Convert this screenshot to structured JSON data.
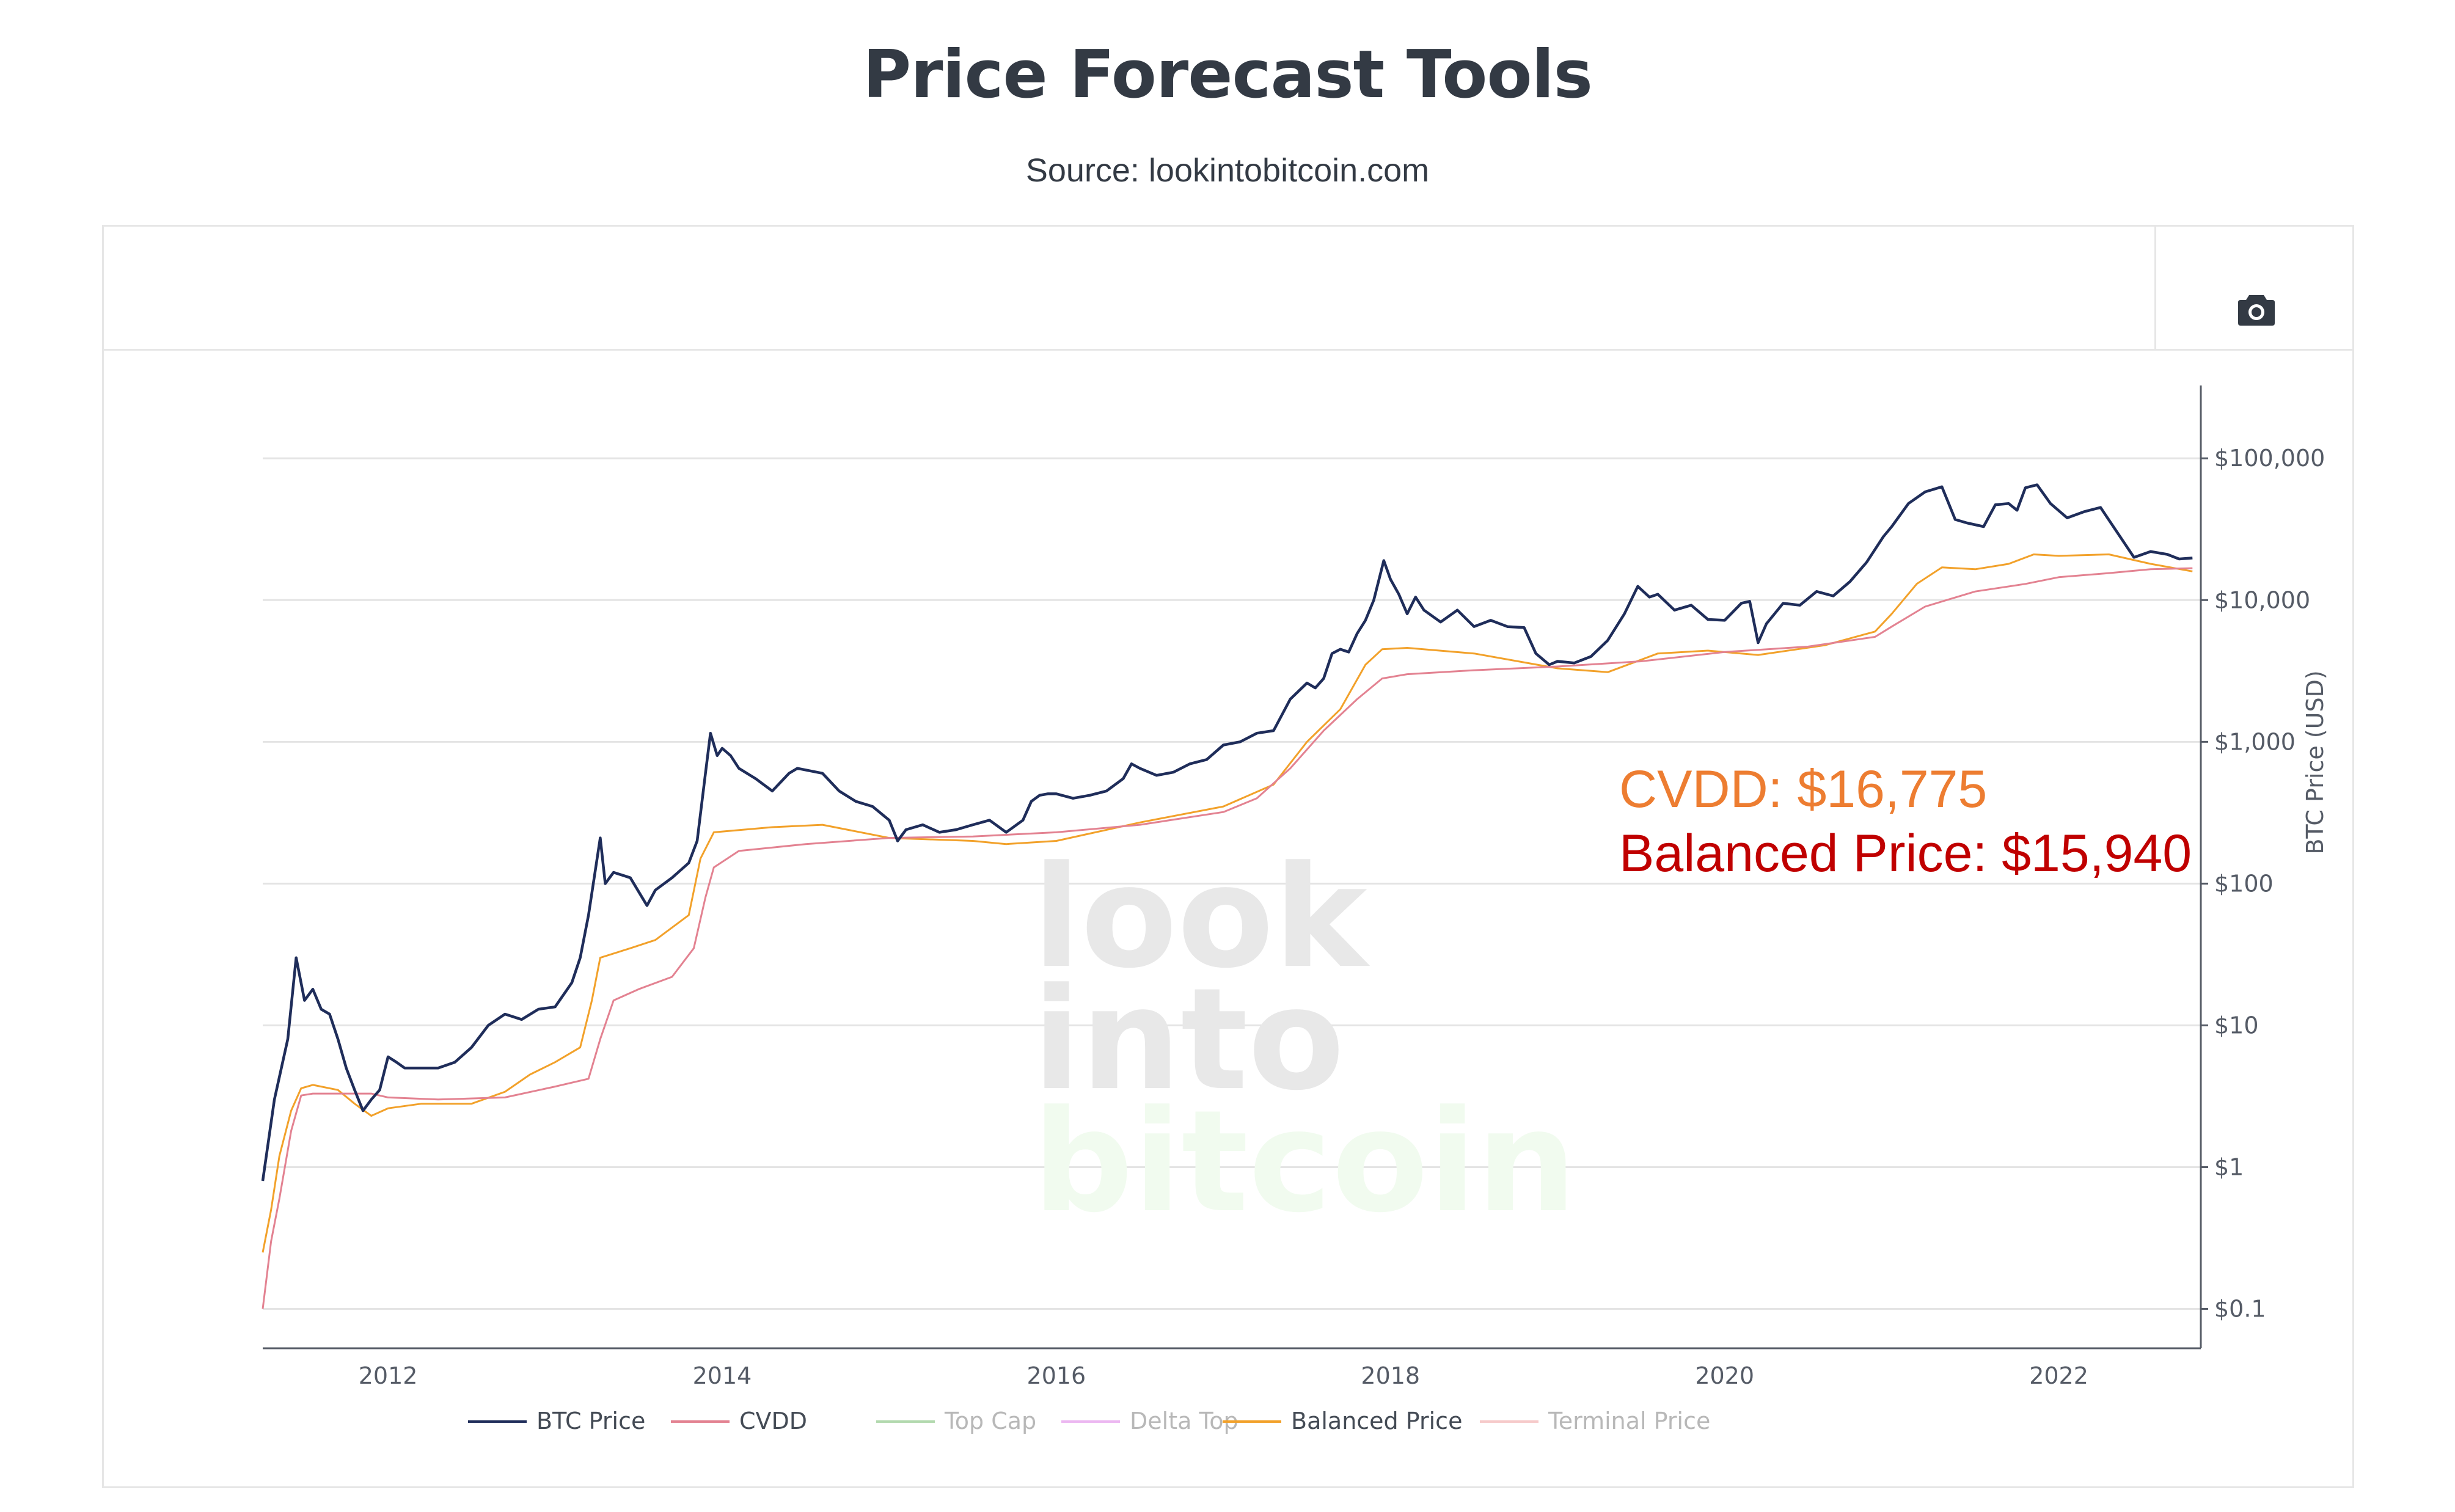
{
  "page": {
    "title": "Price Forecast Tools",
    "subtitle": "Source: lookintobitcoin.com"
  },
  "toolbar": {
    "camera_icon": "camera-icon"
  },
  "watermark": {
    "line1": "look",
    "line2": "into",
    "line3": "bitcoin"
  },
  "annotations": {
    "cvdd": "CVDD: $16,775",
    "balanced": "Balanced Price: $15,940",
    "cvdd_color": "#ed7d31",
    "balanced_color": "#c00000"
  },
  "chart_data": {
    "type": "line",
    "title": "Price Forecast Tools",
    "ylabel": "BTC Price (USD)",
    "yscale": "log",
    "ylim": [
      0.08,
      180000
    ],
    "xlim": [
      2011.25,
      2022.85
    ],
    "x_ticks": [
      2012,
      2014,
      2016,
      2018,
      2020,
      2022
    ],
    "x_tick_labels": [
      "2012",
      "2014",
      "2016",
      "2018",
      "2020",
      "2022"
    ],
    "y_ticks": [
      0.1,
      1,
      10,
      100,
      1000,
      10000,
      100000
    ],
    "y_tick_labels": [
      "$0.1",
      "$1",
      "$10",
      "$100",
      "$1,000",
      "$10,000",
      "$100,000"
    ],
    "series": [
      {
        "name": "BTC Price",
        "color": "#1f2d5a",
        "visible": true,
        "width": 4.5,
        "points": [
          [
            2011.25,
            0.8
          ],
          [
            2011.32,
            3
          ],
          [
            2011.4,
            8
          ],
          [
            2011.45,
            30
          ],
          [
            2011.5,
            15
          ],
          [
            2011.55,
            18
          ],
          [
            2011.6,
            13
          ],
          [
            2011.65,
            12
          ],
          [
            2011.7,
            8
          ],
          [
            2011.75,
            5
          ],
          [
            2011.8,
            3.5
          ],
          [
            2011.85,
            2.5
          ],
          [
            2011.9,
            3
          ],
          [
            2011.95,
            3.5
          ],
          [
            2012.0,
            6
          ],
          [
            2012.05,
            5.5
          ],
          [
            2012.1,
            5
          ],
          [
            2012.2,
            5
          ],
          [
            2012.3,
            5
          ],
          [
            2012.4,
            5.5
          ],
          [
            2012.5,
            7
          ],
          [
            2012.6,
            10
          ],
          [
            2012.7,
            12
          ],
          [
            2012.8,
            11
          ],
          [
            2012.9,
            13
          ],
          [
            2013.0,
            13.5
          ],
          [
            2013.1,
            20
          ],
          [
            2013.15,
            30
          ],
          [
            2013.2,
            60
          ],
          [
            2013.27,
            210
          ],
          [
            2013.3,
            100
          ],
          [
            2013.35,
            120
          ],
          [
            2013.45,
            110
          ],
          [
            2013.55,
            70
          ],
          [
            2013.6,
            90
          ],
          [
            2013.7,
            110
          ],
          [
            2013.8,
            140
          ],
          [
            2013.85,
            200
          ],
          [
            2013.9,
            600
          ],
          [
            2013.93,
            1150
          ],
          [
            2013.97,
            800
          ],
          [
            2014.0,
            900
          ],
          [
            2014.05,
            800
          ],
          [
            2014.1,
            650
          ],
          [
            2014.2,
            550
          ],
          [
            2014.3,
            450
          ],
          [
            2014.4,
            600
          ],
          [
            2014.45,
            650
          ],
          [
            2014.6,
            600
          ],
          [
            2014.7,
            450
          ],
          [
            2014.8,
            380
          ],
          [
            2014.9,
            350
          ],
          [
            2015.0,
            280
          ],
          [
            2015.05,
            200
          ],
          [
            2015.1,
            240
          ],
          [
            2015.2,
            260
          ],
          [
            2015.3,
            230
          ],
          [
            2015.4,
            240
          ],
          [
            2015.5,
            260
          ],
          [
            2015.6,
            280
          ],
          [
            2015.7,
            230
          ],
          [
            2015.8,
            280
          ],
          [
            2015.85,
            380
          ],
          [
            2015.9,
            420
          ],
          [
            2015.95,
            430
          ],
          [
            2016.0,
            430
          ],
          [
            2016.1,
            400
          ],
          [
            2016.2,
            420
          ],
          [
            2016.3,
            450
          ],
          [
            2016.4,
            550
          ],
          [
            2016.45,
            700
          ],
          [
            2016.5,
            650
          ],
          [
            2016.6,
            580
          ],
          [
            2016.7,
            610
          ],
          [
            2016.8,
            700
          ],
          [
            2016.9,
            750
          ],
          [
            2017.0,
            950
          ],
          [
            2017.1,
            1000
          ],
          [
            2017.2,
            1150
          ],
          [
            2017.3,
            1200
          ],
          [
            2017.4,
            2000
          ],
          [
            2017.5,
            2600
          ],
          [
            2017.55,
            2400
          ],
          [
            2017.6,
            2800
          ],
          [
            2017.65,
            4200
          ],
          [
            2017.7,
            4500
          ],
          [
            2017.75,
            4300
          ],
          [
            2017.8,
            5800
          ],
          [
            2017.85,
            7200
          ],
          [
            2017.9,
            10000
          ],
          [
            2017.96,
            19000
          ],
          [
            2018.0,
            14000
          ],
          [
            2018.05,
            11000
          ],
          [
            2018.1,
            8000
          ],
          [
            2018.15,
            10500
          ],
          [
            2018.2,
            8500
          ],
          [
            2018.3,
            7000
          ],
          [
            2018.4,
            8500
          ],
          [
            2018.5,
            6500
          ],
          [
            2018.6,
            7200
          ],
          [
            2018.7,
            6500
          ],
          [
            2018.8,
            6400
          ],
          [
            2018.87,
            4200
          ],
          [
            2018.95,
            3500
          ],
          [
            2019.0,
            3700
          ],
          [
            2019.1,
            3600
          ],
          [
            2019.2,
            4000
          ],
          [
            2019.3,
            5200
          ],
          [
            2019.4,
            8000
          ],
          [
            2019.48,
            12500
          ],
          [
            2019.55,
            10500
          ],
          [
            2019.6,
            11000
          ],
          [
            2019.7,
            8500
          ],
          [
            2019.8,
            9200
          ],
          [
            2019.9,
            7300
          ],
          [
            2020.0,
            7200
          ],
          [
            2020.1,
            9500
          ],
          [
            2020.15,
            9800
          ],
          [
            2020.2,
            5000
          ],
          [
            2020.25,
            6800
          ],
          [
            2020.35,
            9500
          ],
          [
            2020.45,
            9200
          ],
          [
            2020.55,
            11500
          ],
          [
            2020.65,
            10700
          ],
          [
            2020.75,
            13500
          ],
          [
            2020.85,
            18500
          ],
          [
            2020.95,
            28000
          ],
          [
            2021.0,
            33000
          ],
          [
            2021.1,
            48000
          ],
          [
            2021.2,
            58000
          ],
          [
            2021.3,
            63000
          ],
          [
            2021.38,
            37000
          ],
          [
            2021.45,
            35000
          ],
          [
            2021.55,
            33000
          ],
          [
            2021.62,
            47000
          ],
          [
            2021.7,
            48000
          ],
          [
            2021.75,
            43000
          ],
          [
            2021.8,
            62000
          ],
          [
            2021.87,
            65000
          ],
          [
            2021.95,
            48000
          ],
          [
            2022.05,
            38000
          ],
          [
            2022.15,
            42000
          ],
          [
            2022.25,
            45000
          ],
          [
            2022.35,
            30000
          ],
          [
            2022.45,
            20000
          ],
          [
            2022.55,
            22000
          ],
          [
            2022.65,
            21000
          ],
          [
            2022.72,
            19500
          ],
          [
            2022.8,
            19800
          ]
        ]
      },
      {
        "name": "CVDD",
        "color": "#e38291",
        "visible": true,
        "width": 3,
        "points": [
          [
            2011.25,
            0.1
          ],
          [
            2011.3,
            0.3
          ],
          [
            2011.35,
            0.6
          ],
          [
            2011.42,
            1.8
          ],
          [
            2011.48,
            3.2
          ],
          [
            2011.55,
            3.3
          ],
          [
            2011.7,
            3.3
          ],
          [
            2011.9,
            3.3
          ],
          [
            2012.0,
            3.1
          ],
          [
            2012.3,
            3.0
          ],
          [
            2012.7,
            3.1
          ],
          [
            2013.0,
            3.7
          ],
          [
            2013.2,
            4.2
          ],
          [
            2013.27,
            8
          ],
          [
            2013.35,
            15
          ],
          [
            2013.5,
            18
          ],
          [
            2013.7,
            22
          ],
          [
            2013.83,
            35
          ],
          [
            2013.9,
            80
          ],
          [
            2013.95,
            130
          ],
          [
            2014.1,
            170
          ],
          [
            2014.5,
            190
          ],
          [
            2015.0,
            210
          ],
          [
            2015.5,
            215
          ],
          [
            2016.0,
            230
          ],
          [
            2016.5,
            260
          ],
          [
            2017.0,
            320
          ],
          [
            2017.2,
            400
          ],
          [
            2017.4,
            650
          ],
          [
            2017.6,
            1200
          ],
          [
            2017.8,
            2000
          ],
          [
            2017.95,
            2800
          ],
          [
            2018.1,
            3000
          ],
          [
            2018.5,
            3200
          ],
          [
            2019.0,
            3400
          ],
          [
            2019.5,
            3700
          ],
          [
            2020.0,
            4300
          ],
          [
            2020.5,
            4700
          ],
          [
            2020.9,
            5500
          ],
          [
            2021.0,
            6500
          ],
          [
            2021.2,
            9000
          ],
          [
            2021.5,
            11500
          ],
          [
            2021.8,
            13000
          ],
          [
            2022.0,
            14500
          ],
          [
            2022.3,
            15500
          ],
          [
            2022.55,
            16500
          ],
          [
            2022.8,
            16775
          ]
        ]
      },
      {
        "name": "Top Cap",
        "color": "#74bb6d",
        "visible": false,
        "width": 3,
        "points": []
      },
      {
        "name": "Delta Top",
        "color": "#dd7ee6",
        "visible": false,
        "width": 3,
        "points": []
      },
      {
        "name": "Balanced Price",
        "color": "#f2a12a",
        "visible": true,
        "width": 3,
        "points": [
          [
            2011.25,
            0.25
          ],
          [
            2011.3,
            0.5
          ],
          [
            2011.35,
            1.2
          ],
          [
            2011.42,
            2.5
          ],
          [
            2011.48,
            3.6
          ],
          [
            2011.55,
            3.8
          ],
          [
            2011.7,
            3.5
          ],
          [
            2011.8,
            2.8
          ],
          [
            2011.9,
            2.3
          ],
          [
            2012.0,
            2.6
          ],
          [
            2012.2,
            2.8
          ],
          [
            2012.5,
            2.8
          ],
          [
            2012.7,
            3.4
          ],
          [
            2012.85,
            4.5
          ],
          [
            2013.0,
            5.5
          ],
          [
            2013.15,
            7
          ],
          [
            2013.22,
            15
          ],
          [
            2013.27,
            30
          ],
          [
            2013.45,
            35
          ],
          [
            2013.6,
            40
          ],
          [
            2013.8,
            60
          ],
          [
            2013.87,
            150
          ],
          [
            2013.95,
            230
          ],
          [
            2014.3,
            250
          ],
          [
            2014.6,
            260
          ],
          [
            2015.0,
            210
          ],
          [
            2015.5,
            200
          ],
          [
            2015.7,
            190
          ],
          [
            2016.0,
            200
          ],
          [
            2016.5,
            270
          ],
          [
            2017.0,
            350
          ],
          [
            2017.3,
            500
          ],
          [
            2017.5,
            1000
          ],
          [
            2017.7,
            1700
          ],
          [
            2017.85,
            3500
          ],
          [
            2017.95,
            4500
          ],
          [
            2018.1,
            4600
          ],
          [
            2018.5,
            4200
          ],
          [
            2019.0,
            3300
          ],
          [
            2019.3,
            3100
          ],
          [
            2019.6,
            4200
          ],
          [
            2019.9,
            4400
          ],
          [
            2020.2,
            4100
          ],
          [
            2020.6,
            4800
          ],
          [
            2020.9,
            6000
          ],
          [
            2021.0,
            8000
          ],
          [
            2021.15,
            13000
          ],
          [
            2021.3,
            17000
          ],
          [
            2021.5,
            16500
          ],
          [
            2021.7,
            18000
          ],
          [
            2021.85,
            21000
          ],
          [
            2022.0,
            20500
          ],
          [
            2022.3,
            21000
          ],
          [
            2022.55,
            18000
          ],
          [
            2022.8,
            15940
          ]
        ]
      },
      {
        "name": "Terminal Price",
        "color": "#f0a0a0",
        "visible": false,
        "width": 3,
        "points": []
      }
    ]
  }
}
